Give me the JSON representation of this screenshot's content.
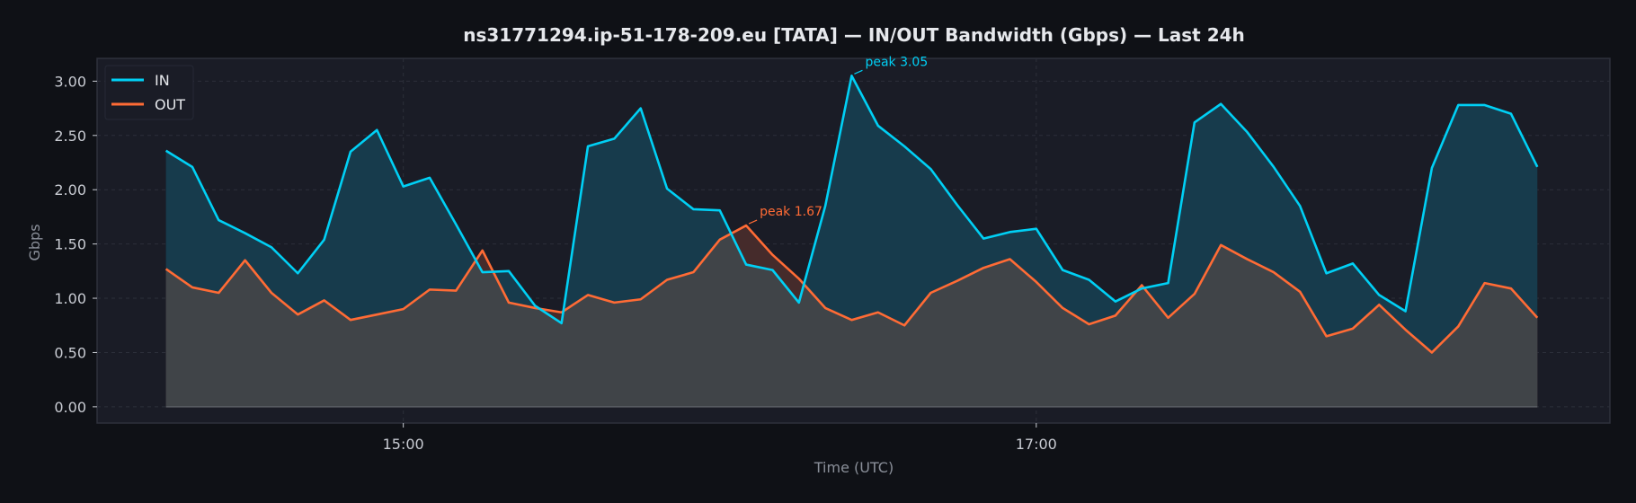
{
  "chart_data": {
    "type": "line",
    "title": "ns31771294.ip-51-178-209.eu [TATA] — IN/OUT Bandwidth (Gbps) — Last 24h",
    "xlabel": "Time (UTC)",
    "ylabel": "Gbps",
    "ylim": [
      -0.15,
      3.21
    ],
    "x_start": "14:15",
    "x_step_minutes": 5,
    "xticks": [
      {
        "label": "15:00",
        "minute": 900
      },
      {
        "label": "17:00",
        "minute": 1020
      }
    ],
    "yticks": [
      "0.00",
      "0.50",
      "1.00",
      "1.50",
      "2.00",
      "2.50",
      "3.00"
    ],
    "grid": true,
    "legend_position": "top-left",
    "colors": {
      "in": "#00d0f5",
      "out": "#ff6b35",
      "in_fill": "#173b4c",
      "out_fill": "#404448",
      "out_over_fill": "#452b2b"
    },
    "series": [
      {
        "name": "IN",
        "values": [
          2.36,
          2.21,
          1.72,
          1.6,
          1.47,
          1.23,
          1.54,
          2.35,
          2.55,
          2.03,
          2.11,
          1.68,
          1.24,
          1.25,
          0.93,
          0.77,
          2.4,
          2.47,
          2.75,
          2.01,
          1.82,
          1.81,
          1.31,
          1.26,
          0.96,
          1.85,
          3.05,
          2.59,
          2.4,
          2.19,
          1.86,
          1.55,
          1.61,
          1.64,
          1.26,
          1.17,
          0.97,
          1.09,
          1.14,
          2.62,
          2.79,
          2.53,
          2.21,
          1.85,
          1.23,
          1.32,
          1.03,
          0.88,
          2.2,
          2.78,
          2.78,
          2.7,
          2.21
        ]
      },
      {
        "name": "OUT",
        "values": [
          1.27,
          1.1,
          1.05,
          1.35,
          1.05,
          0.85,
          0.98,
          0.8,
          0.85,
          0.9,
          1.08,
          1.07,
          1.44,
          0.96,
          0.91,
          0.87,
          1.03,
          0.96,
          0.99,
          1.17,
          1.24,
          1.54,
          1.67,
          1.4,
          1.18,
          0.91,
          0.8,
          0.87,
          0.75,
          1.05,
          1.16,
          1.28,
          1.36,
          1.15,
          0.91,
          0.76,
          0.84,
          1.12,
          0.82,
          1.04,
          1.49,
          1.36,
          1.24,
          1.06,
          0.65,
          0.72,
          0.94,
          0.71,
          0.5,
          0.74,
          1.14,
          1.09,
          0.82
        ]
      }
    ],
    "annotations": [
      {
        "series": "IN",
        "text": "peak 3.05",
        "index": 26
      },
      {
        "series": "OUT",
        "text": "peak 1.67",
        "index": 22
      }
    ]
  }
}
